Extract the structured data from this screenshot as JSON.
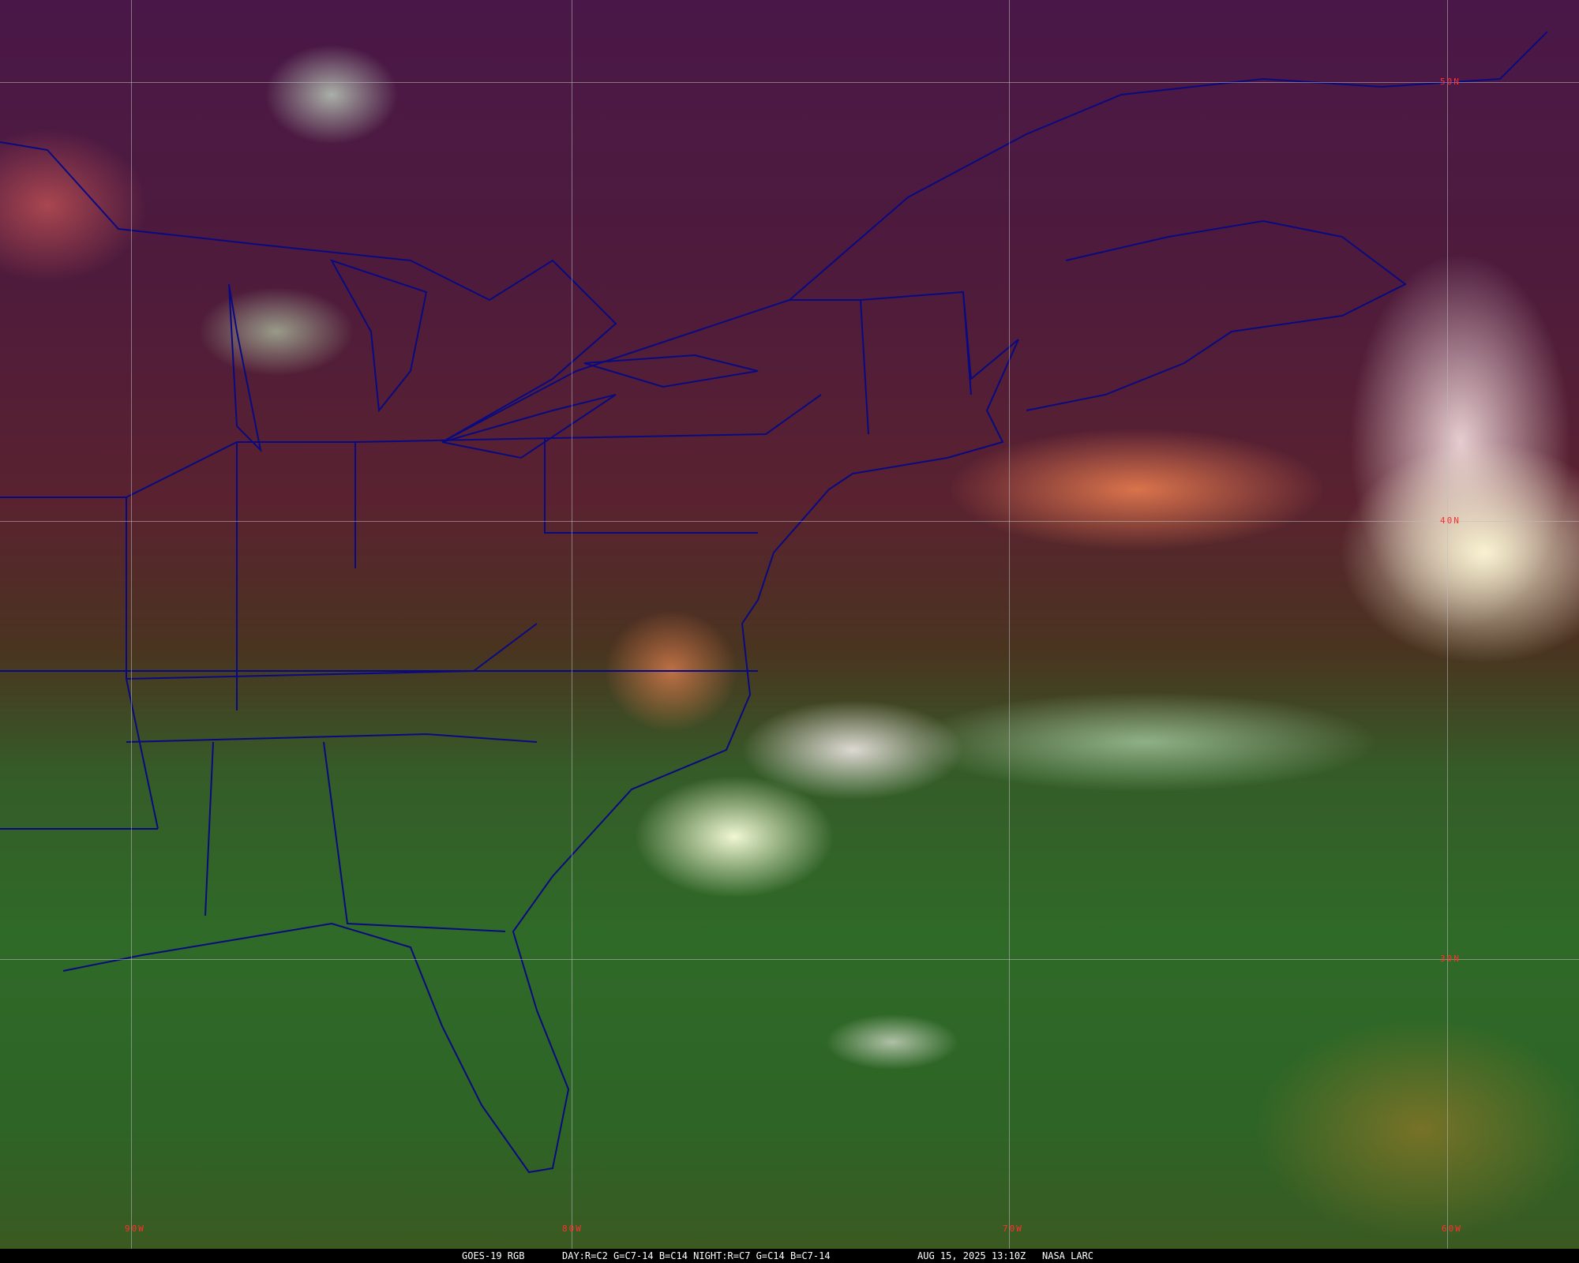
{
  "map": {
    "type": "satellite-rgb-composite",
    "colors": {
      "border_lines": "#0a0a80",
      "grid_labels": "#ff3030",
      "grid_lines": "#bebebe"
    },
    "latitude_labels": [
      "50N",
      "40N",
      "30N"
    ],
    "longitude_labels": [
      "90W",
      "80W",
      "70W",
      "60W"
    ]
  },
  "caption": {
    "satellite": "GOES-19 RGB",
    "product": "DAY:R=C2 G=C7-14 B=C14 NIGHT:R=C7 G=C14 B=C7-14",
    "timestamp": "AUG 15, 2025 13:10Z",
    "source": "NASA LARC"
  }
}
